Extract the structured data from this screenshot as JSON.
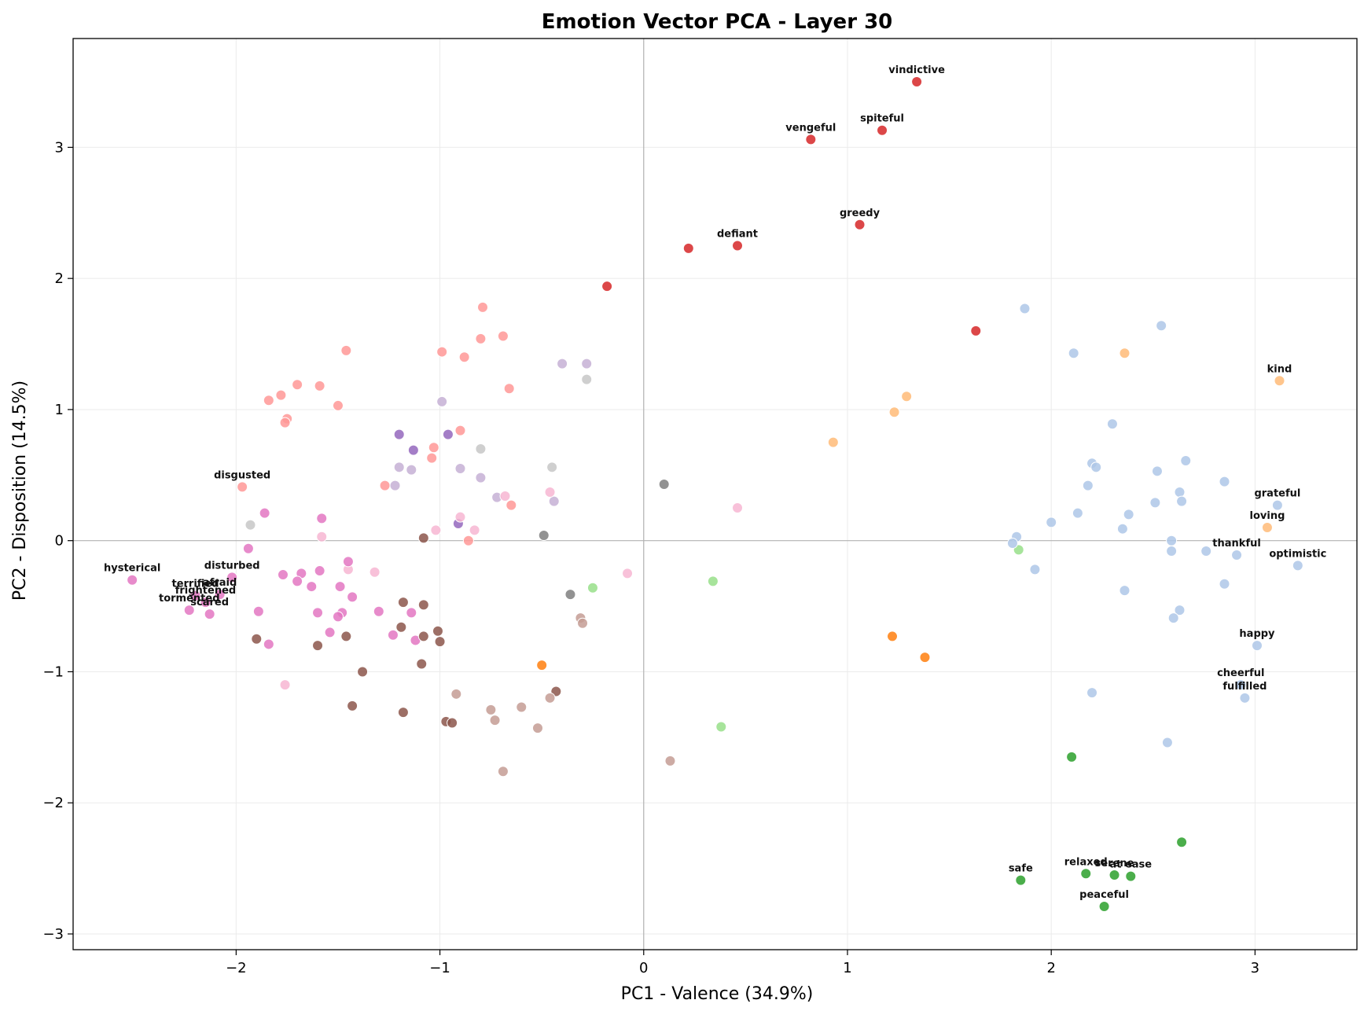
{
  "chart_data": {
    "type": "scatter",
    "title": "Emotion Vector PCA - Layer 30",
    "xlabel": "PC1 - Valence (34.9%)",
    "ylabel": "PC2 - Disposition (14.5%)",
    "xlim": [
      -2.8,
      3.5
    ],
    "ylim": [
      -3.12,
      3.83
    ],
    "xticks": [
      -2,
      -1,
      0,
      1,
      2,
      3
    ],
    "yticks": [
      -3,
      -2,
      -1,
      0,
      1,
      2,
      3
    ],
    "xtick_labels": [
      "−2",
      "−1",
      "0",
      "1",
      "2",
      "3"
    ],
    "ytick_labels": [
      "−3",
      "−2",
      "−1",
      "0",
      "1",
      "2",
      "3"
    ],
    "grid": true,
    "zero_lines": true,
    "points": [
      {
        "x": 1.34,
        "y": 3.5,
        "color": "#d62728",
        "label": "vindictive"
      },
      {
        "x": 0.82,
        "y": 3.06,
        "color": "#d62728",
        "label": "vengeful"
      },
      {
        "x": 1.17,
        "y": 3.13,
        "color": "#d62728",
        "label": "spiteful"
      },
      {
        "x": 1.06,
        "y": 2.41,
        "color": "#d62728",
        "label": "greedy"
      },
      {
        "x": 0.46,
        "y": 2.25,
        "color": "#d62728",
        "label": "defiant"
      },
      {
        "x": 0.22,
        "y": 2.23,
        "color": "#d62728"
      },
      {
        "x": -0.18,
        "y": 1.94,
        "color": "#d62728"
      },
      {
        "x": 1.63,
        "y": 1.6,
        "color": "#d62728"
      },
      {
        "x": -1.97,
        "y": 0.41,
        "color": "#ff9896",
        "label": "disgusted"
      },
      {
        "x": -0.79,
        "y": 1.78,
        "color": "#ff9896"
      },
      {
        "x": -1.46,
        "y": 1.45,
        "color": "#ff9896"
      },
      {
        "x": -0.99,
        "y": 1.44,
        "color": "#ff9896"
      },
      {
        "x": -0.69,
        "y": 1.56,
        "color": "#ff9896"
      },
      {
        "x": -0.8,
        "y": 1.54,
        "color": "#ff9896"
      },
      {
        "x": -0.88,
        "y": 1.4,
        "color": "#ff9896"
      },
      {
        "x": -1.7,
        "y": 1.19,
        "color": "#ff9896"
      },
      {
        "x": -1.59,
        "y": 1.18,
        "color": "#ff9896"
      },
      {
        "x": -0.66,
        "y": 1.16,
        "color": "#ff9896"
      },
      {
        "x": -1.78,
        "y": 1.11,
        "color": "#ff9896"
      },
      {
        "x": -1.84,
        "y": 1.07,
        "color": "#ff9896"
      },
      {
        "x": -1.5,
        "y": 1.03,
        "color": "#ff9896"
      },
      {
        "x": -1.75,
        "y": 0.93,
        "color": "#ff9896"
      },
      {
        "x": -1.76,
        "y": 0.9,
        "color": "#ff9896"
      },
      {
        "x": -0.9,
        "y": 0.84,
        "color": "#ff9896"
      },
      {
        "x": -1.03,
        "y": 0.71,
        "color": "#ff9896"
      },
      {
        "x": -1.04,
        "y": 0.63,
        "color": "#ff9896"
      },
      {
        "x": -1.27,
        "y": 0.42,
        "color": "#ff9896"
      },
      {
        "x": -0.65,
        "y": 0.27,
        "color": "#ff9896"
      },
      {
        "x": -0.86,
        "y": 0.0,
        "color": "#ff9896"
      },
      {
        "x": -0.4,
        "y": 1.35,
        "color": "#c5b0d5"
      },
      {
        "x": -0.28,
        "y": 1.35,
        "color": "#c5b0d5"
      },
      {
        "x": -0.99,
        "y": 1.06,
        "color": "#c5b0d5"
      },
      {
        "x": -1.2,
        "y": 0.56,
        "color": "#c5b0d5"
      },
      {
        "x": -1.14,
        "y": 0.54,
        "color": "#c5b0d5"
      },
      {
        "x": -0.9,
        "y": 0.55,
        "color": "#c5b0d5"
      },
      {
        "x": -0.8,
        "y": 0.48,
        "color": "#c5b0d5"
      },
      {
        "x": -1.22,
        "y": 0.42,
        "color": "#c5b0d5"
      },
      {
        "x": -0.72,
        "y": 0.33,
        "color": "#c5b0d5"
      },
      {
        "x": -0.44,
        "y": 0.3,
        "color": "#c5b0d5"
      },
      {
        "x": -0.28,
        "y": 1.23,
        "color": "#c7c7c7"
      },
      {
        "x": -0.8,
        "y": 0.7,
        "color": "#c7c7c7"
      },
      {
        "x": -0.45,
        "y": 0.56,
        "color": "#c7c7c7"
      },
      {
        "x": -1.93,
        "y": 0.12,
        "color": "#c7c7c7"
      },
      {
        "x": -1.2,
        "y": 0.81,
        "color": "#9467bd"
      },
      {
        "x": -0.96,
        "y": 0.81,
        "color": "#9467bd"
      },
      {
        "x": -1.13,
        "y": 0.69,
        "color": "#9467bd"
      },
      {
        "x": -0.91,
        "y": 0.13,
        "color": "#9467bd"
      },
      {
        "x": 0.1,
        "y": 0.43,
        "color": "#7f7f7f"
      },
      {
        "x": -0.49,
        "y": 0.04,
        "color": "#7f7f7f"
      },
      {
        "x": -0.36,
        "y": -0.41,
        "color": "#7f7f7f"
      },
      {
        "x": 0.46,
        "y": 0.25,
        "color": "#f7b6d2"
      },
      {
        "x": -0.46,
        "y": 0.37,
        "color": "#f7b6d2"
      },
      {
        "x": -0.68,
        "y": 0.34,
        "color": "#f7b6d2"
      },
      {
        "x": -0.9,
        "y": 0.18,
        "color": "#f7b6d2"
      },
      {
        "x": -0.83,
        "y": 0.08,
        "color": "#f7b6d2"
      },
      {
        "x": -1.02,
        "y": 0.08,
        "color": "#f7b6d2"
      },
      {
        "x": -1.58,
        "y": 0.03,
        "color": "#f7b6d2"
      },
      {
        "x": -1.45,
        "y": -0.22,
        "color": "#f7b6d2"
      },
      {
        "x": -1.32,
        "y": -0.24,
        "color": "#f7b6d2"
      },
      {
        "x": -0.08,
        "y": -0.25,
        "color": "#f7b6d2"
      },
      {
        "x": -1.76,
        "y": -1.1,
        "color": "#f7b6d2"
      },
      {
        "x": -2.51,
        "y": -0.3,
        "color": "#e377c2",
        "label": "hysterical"
      },
      {
        "x": -2.02,
        "y": -0.28,
        "color": "#e377c2",
        "label": "disturbed"
      },
      {
        "x": -2.2,
        "y": -0.42,
        "color": "#e377c2",
        "label": "terrified"
      },
      {
        "x": -2.08,
        "y": -0.41,
        "color": "#e377c2",
        "label": "afraid"
      },
      {
        "x": -2.15,
        "y": -0.47,
        "color": "#e377c2",
        "label": "frightened"
      },
      {
        "x": -2.23,
        "y": -0.53,
        "color": "#e377c2",
        "label": "tormented"
      },
      {
        "x": -2.13,
        "y": -0.56,
        "color": "#e377c2",
        "label": "scared"
      },
      {
        "x": -1.86,
        "y": 0.21,
        "color": "#e377c2"
      },
      {
        "x": -1.58,
        "y": 0.17,
        "color": "#e377c2"
      },
      {
        "x": -1.94,
        "y": -0.06,
        "color": "#e377c2"
      },
      {
        "x": -1.45,
        "y": -0.16,
        "color": "#e377c2"
      },
      {
        "x": -1.59,
        "y": -0.23,
        "color": "#e377c2"
      },
      {
        "x": -1.68,
        "y": -0.25,
        "color": "#e377c2"
      },
      {
        "x": -1.77,
        "y": -0.26,
        "color": "#e377c2"
      },
      {
        "x": -1.7,
        "y": -0.31,
        "color": "#e377c2"
      },
      {
        "x": -1.63,
        "y": -0.35,
        "color": "#e377c2"
      },
      {
        "x": -1.49,
        "y": -0.35,
        "color": "#e377c2"
      },
      {
        "x": -1.43,
        "y": -0.43,
        "color": "#e377c2"
      },
      {
        "x": -1.89,
        "y": -0.54,
        "color": "#e377c2"
      },
      {
        "x": -1.6,
        "y": -0.55,
        "color": "#e377c2"
      },
      {
        "x": -1.48,
        "y": -0.55,
        "color": "#e377c2"
      },
      {
        "x": -1.5,
        "y": -0.58,
        "color": "#e377c2"
      },
      {
        "x": -1.3,
        "y": -0.54,
        "color": "#e377c2"
      },
      {
        "x": -1.14,
        "y": -0.55,
        "color": "#e377c2"
      },
      {
        "x": -1.54,
        "y": -0.7,
        "color": "#e377c2"
      },
      {
        "x": -1.23,
        "y": -0.72,
        "color": "#e377c2"
      },
      {
        "x": -1.12,
        "y": -0.76,
        "color": "#e377c2"
      },
      {
        "x": -1.84,
        "y": -0.79,
        "color": "#e377c2"
      },
      {
        "x": -1.08,
        "y": 0.02,
        "color": "#8c564b"
      },
      {
        "x": -1.18,
        "y": -0.47,
        "color": "#8c564b"
      },
      {
        "x": -1.08,
        "y": -0.49,
        "color": "#8c564b"
      },
      {
        "x": -1.19,
        "y": -0.66,
        "color": "#8c564b"
      },
      {
        "x": -1.01,
        "y": -0.69,
        "color": "#8c564b"
      },
      {
        "x": -1.08,
        "y": -0.73,
        "color": "#8c564b"
      },
      {
        "x": -1.46,
        "y": -0.73,
        "color": "#8c564b"
      },
      {
        "x": -1.9,
        "y": -0.75,
        "color": "#8c564b"
      },
      {
        "x": -1.0,
        "y": -0.77,
        "color": "#8c564b"
      },
      {
        "x": -1.6,
        "y": -0.8,
        "color": "#8c564b"
      },
      {
        "x": -1.09,
        "y": -0.94,
        "color": "#8c564b"
      },
      {
        "x": -1.38,
        "y": -1.0,
        "color": "#8c564b"
      },
      {
        "x": -0.43,
        "y": -1.15,
        "color": "#8c564b"
      },
      {
        "x": -1.43,
        "y": -1.26,
        "color": "#8c564b"
      },
      {
        "x": -1.18,
        "y": -1.31,
        "color": "#8c564b"
      },
      {
        "x": -0.97,
        "y": -1.38,
        "color": "#8c564b"
      },
      {
        "x": -0.94,
        "y": -1.39,
        "color": "#8c564b"
      },
      {
        "x": -0.31,
        "y": -0.59,
        "color": "#c49c94"
      },
      {
        "x": -0.3,
        "y": -0.63,
        "color": "#c49c94"
      },
      {
        "x": -0.92,
        "y": -1.17,
        "color": "#c49c94"
      },
      {
        "x": -0.46,
        "y": -1.2,
        "color": "#c49c94"
      },
      {
        "x": -0.6,
        "y": -1.27,
        "color": "#c49c94"
      },
      {
        "x": -0.75,
        "y": -1.29,
        "color": "#c49c94"
      },
      {
        "x": -0.73,
        "y": -1.37,
        "color": "#c49c94"
      },
      {
        "x": -0.52,
        "y": -1.43,
        "color": "#c49c94"
      },
      {
        "x": 0.13,
        "y": -1.68,
        "color": "#c49c94"
      },
      {
        "x": -0.69,
        "y": -1.76,
        "color": "#c49c94"
      },
      {
        "x": -0.25,
        "y": -0.36,
        "color": "#98df8a"
      },
      {
        "x": 0.34,
        "y": -0.31,
        "color": "#98df8a"
      },
      {
        "x": 1.84,
        "y": -0.07,
        "color": "#98df8a"
      },
      {
        "x": 0.38,
        "y": -1.42,
        "color": "#98df8a"
      },
      {
        "x": -0.5,
        "y": -0.95,
        "color": "#ff7f0e"
      },
      {
        "x": 1.22,
        "y": -0.73,
        "color": "#ff7f0e"
      },
      {
        "x": 1.38,
        "y": -0.89,
        "color": "#ff7f0e"
      },
      {
        "x": 3.12,
        "y": 1.22,
        "color": "#ffbb78",
        "label": "kind"
      },
      {
        "x": 3.06,
        "y": 0.1,
        "color": "#ffbb78",
        "label": "loving"
      },
      {
        "x": 2.36,
        "y": 1.43,
        "color": "#ffbb78"
      },
      {
        "x": 1.29,
        "y": 1.1,
        "color": "#ffbb78"
      },
      {
        "x": 1.23,
        "y": 0.98,
        "color": "#ffbb78"
      },
      {
        "x": 0.93,
        "y": 0.75,
        "color": "#ffbb78"
      },
      {
        "x": 3.11,
        "y": 0.27,
        "color": "#aec7e8",
        "label": "grateful"
      },
      {
        "x": 2.91,
        "y": -0.11,
        "color": "#aec7e8",
        "label": "thankful"
      },
      {
        "x": 3.21,
        "y": -0.19,
        "color": "#aec7e8",
        "label": "optimistic"
      },
      {
        "x": 3.01,
        "y": -0.8,
        "color": "#aec7e8",
        "label": "happy"
      },
      {
        "x": 2.93,
        "y": -1.1,
        "color": "#aec7e8",
        "label": "cheerful"
      },
      {
        "x": 2.95,
        "y": -1.2,
        "color": "#aec7e8",
        "label": "fulfilled"
      },
      {
        "x": 1.87,
        "y": 1.77,
        "color": "#aec7e8"
      },
      {
        "x": 2.54,
        "y": 1.64,
        "color": "#aec7e8"
      },
      {
        "x": 2.11,
        "y": 1.43,
        "color": "#aec7e8"
      },
      {
        "x": 2.3,
        "y": 0.89,
        "color": "#aec7e8"
      },
      {
        "x": 2.66,
        "y": 0.61,
        "color": "#aec7e8"
      },
      {
        "x": 2.2,
        "y": 0.59,
        "color": "#aec7e8"
      },
      {
        "x": 2.22,
        "y": 0.56,
        "color": "#aec7e8"
      },
      {
        "x": 2.52,
        "y": 0.53,
        "color": "#aec7e8"
      },
      {
        "x": 2.85,
        "y": 0.45,
        "color": "#aec7e8"
      },
      {
        "x": 2.18,
        "y": 0.42,
        "color": "#aec7e8"
      },
      {
        "x": 2.63,
        "y": 0.37,
        "color": "#aec7e8"
      },
      {
        "x": 2.51,
        "y": 0.29,
        "color": "#aec7e8"
      },
      {
        "x": 2.64,
        "y": 0.3,
        "color": "#aec7e8"
      },
      {
        "x": 2.13,
        "y": 0.21,
        "color": "#aec7e8"
      },
      {
        "x": 2.38,
        "y": 0.2,
        "color": "#aec7e8"
      },
      {
        "x": 2.0,
        "y": 0.14,
        "color": "#aec7e8"
      },
      {
        "x": 2.35,
        "y": 0.09,
        "color": "#aec7e8"
      },
      {
        "x": 1.83,
        "y": 0.03,
        "color": "#aec7e8"
      },
      {
        "x": 1.81,
        "y": -0.02,
        "color": "#aec7e8"
      },
      {
        "x": 2.59,
        "y": 0.0,
        "color": "#aec7e8"
      },
      {
        "x": 2.59,
        "y": -0.08,
        "color": "#aec7e8"
      },
      {
        "x": 2.76,
        "y": -0.08,
        "color": "#aec7e8"
      },
      {
        "x": 1.92,
        "y": -0.22,
        "color": "#aec7e8"
      },
      {
        "x": 2.85,
        "y": -0.33,
        "color": "#aec7e8"
      },
      {
        "x": 2.36,
        "y": -0.38,
        "color": "#aec7e8"
      },
      {
        "x": 2.63,
        "y": -0.53,
        "color": "#aec7e8"
      },
      {
        "x": 2.6,
        "y": -0.59,
        "color": "#aec7e8"
      },
      {
        "x": 2.2,
        "y": -1.16,
        "color": "#aec7e8"
      },
      {
        "x": 2.57,
        "y": -1.54,
        "color": "#aec7e8"
      },
      {
        "x": 1.85,
        "y": -2.59,
        "color": "#2ca02c",
        "label": "safe"
      },
      {
        "x": 2.17,
        "y": -2.54,
        "color": "#2ca02c",
        "label": "relaxed"
      },
      {
        "x": 2.31,
        "y": -2.55,
        "color": "#2ca02c",
        "label": "serene"
      },
      {
        "x": 2.39,
        "y": -2.56,
        "color": "#2ca02c",
        "label": "at ease"
      },
      {
        "x": 2.26,
        "y": -2.79,
        "color": "#2ca02c",
        "label": "peaceful"
      },
      {
        "x": 2.1,
        "y": -1.65,
        "color": "#2ca02c"
      },
      {
        "x": 2.64,
        "y": -2.3,
        "color": "#2ca02c"
      }
    ]
  }
}
